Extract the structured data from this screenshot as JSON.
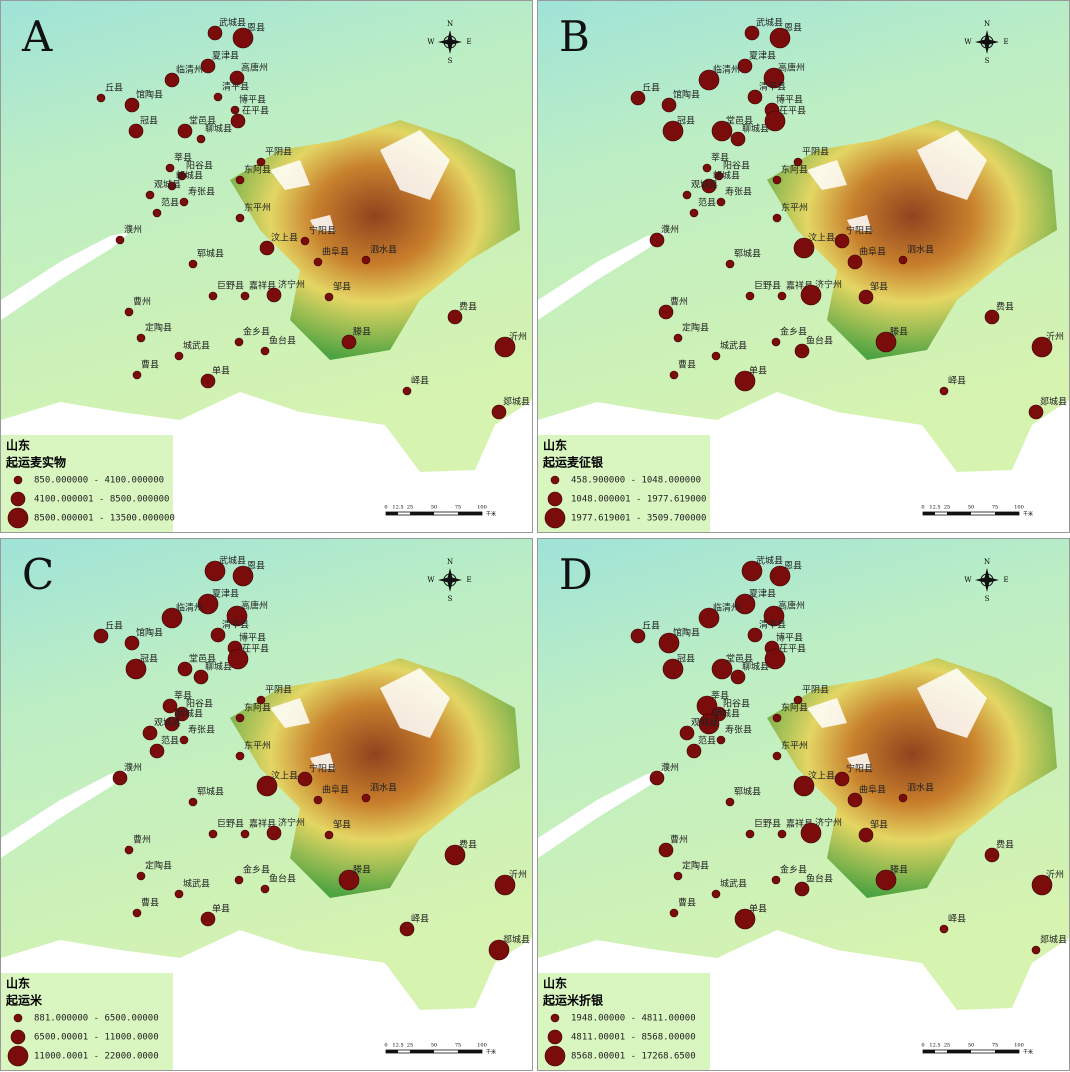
{
  "panels": [
    {
      "letter": "A",
      "legend": {
        "region": "山东",
        "title": "起运麦实物",
        "classes": [
          "850.000000 - 4100.000000",
          "4100.000001 - 8500.000000",
          "8500.000001 - 13500.000000"
        ]
      }
    },
    {
      "letter": "B",
      "legend": {
        "region": "山东",
        "title": "起运麦征银",
        "classes": [
          "458.900000 - 1048.000000",
          "1048.000001 - 1977.619000",
          "1977.619001 - 3509.700000"
        ]
      }
    },
    {
      "letter": "C",
      "legend": {
        "region": "山东",
        "title": "起运米",
        "classes": [
          "881.000000 - 6500.00000",
          "6500.00001 - 11000.0000",
          "11000.0001 - 22000.0000"
        ]
      }
    },
    {
      "letter": "D",
      "legend": {
        "region": "山东",
        "title": "起运米折银",
        "classes": [
          "1948.00000 - 4811.00000",
          "4811.00001 - 8568.00000",
          "8568.00001 - 17268.6500"
        ]
      }
    }
  ],
  "places": [
    "恩县",
    "武城县",
    "夏津县",
    "临清州",
    "高唐州",
    "丘县",
    "馆陶县",
    "清平县",
    "博平县",
    "冠县",
    "堂邑县",
    "聊城县",
    "茌平县",
    "莘县",
    "阳谷县",
    "朝城县",
    "寿张县",
    "观城县",
    "范县",
    "濮州",
    "平阴县",
    "东阿县",
    "东平州",
    "汶上县",
    "宁阳县",
    "泗水县",
    "曲阜县",
    "郓城县",
    "巨野县",
    "嘉祥县",
    "济宁州",
    "邹县",
    "曹州",
    "定陶县",
    "金乡县",
    "鱼台县",
    "城武县",
    "曹县",
    "单县",
    "滕县",
    "费县",
    "沂州",
    "峄县",
    "郯城县"
  ],
  "scale": {
    "ticks": [
      "0",
      "12.5",
      "25",
      "50",
      "75",
      "100"
    ],
    "unit": "千米"
  },
  "compass": {
    "n": "N",
    "s": "S",
    "w": "W",
    "e": "E"
  }
}
